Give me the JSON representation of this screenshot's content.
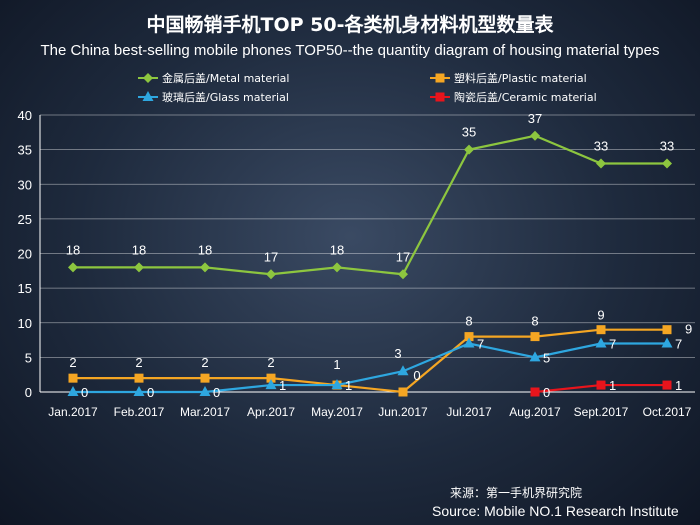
{
  "title_cn": "中国畅销手机TOP 50-各类机身材料机型数量表",
  "title_en": "The China best-selling mobile phones TOP50--the quantity diagram of housing material types",
  "source_cn": "来源：第一手机界研究院",
  "source_en": "Source: Mobile NO.1 Research Institute",
  "chart_data": {
    "type": "line",
    "title": "中国畅销手机TOP 50-各类机身材料机型数量表",
    "subtitle": "The China best-selling mobile phones TOP50--the quantity diagram of housing material types",
    "categories": [
      "Jan.2017",
      "Feb.2017",
      "Mar.2017",
      "Apr.2017",
      "May.2017",
      "Jun.2017",
      "Jul.2017",
      "Aug.2017",
      "Sept.2017",
      "Oct.2017"
    ],
    "ylim": [
      0,
      40
    ],
    "yticks": [
      0,
      5,
      10,
      15,
      20,
      25,
      30,
      35,
      40
    ],
    "grid": true,
    "legend_position": "top",
    "series": [
      {
        "name": "金属后盖/Metal material",
        "color": "#8dc63f",
        "marker": "diamond",
        "values": [
          18,
          18,
          18,
          17,
          18,
          17,
          35,
          37,
          33,
          33
        ]
      },
      {
        "name": "塑料后盖/Plastic material",
        "color": "#f5a623",
        "marker": "square",
        "values": [
          2,
          2,
          2,
          2,
          1,
          0,
          8,
          8,
          9,
          9
        ]
      },
      {
        "name": "玻璃后盖/Glass material",
        "color": "#2ea7e0",
        "marker": "triangle",
        "values": [
          0,
          0,
          0,
          1,
          1,
          3,
          7,
          5,
          7,
          7
        ]
      },
      {
        "name": "陶瓷后盖/Ceramic material",
        "color": "#e8141c",
        "marker": "square",
        "values": [
          null,
          null,
          null,
          null,
          null,
          null,
          null,
          0,
          1,
          1
        ]
      }
    ]
  }
}
